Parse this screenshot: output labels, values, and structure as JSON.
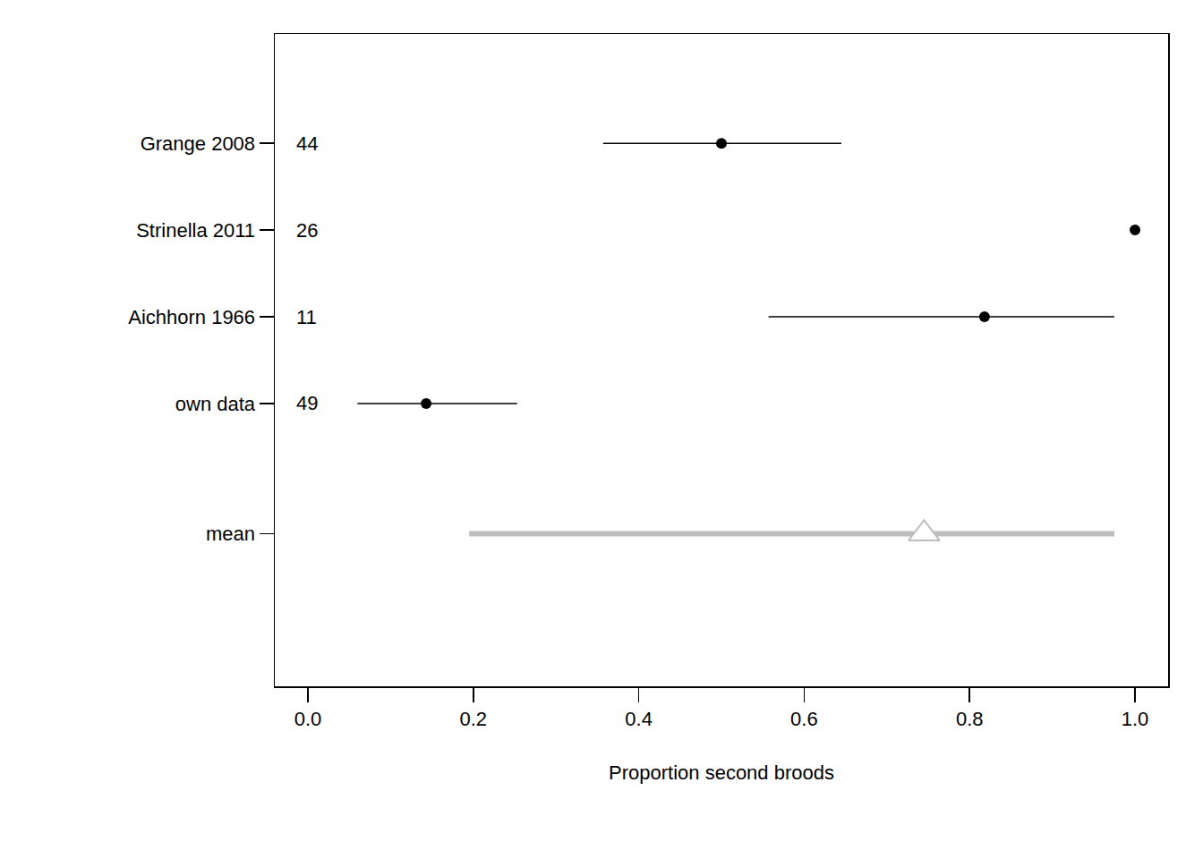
{
  "chart_data": {
    "type": "forest",
    "xlabel": "Proportion second broods",
    "categories": [
      "Grange 2008",
      "Strinella 2011",
      "Aichhorn 1966",
      "own data",
      "mean"
    ],
    "values": [
      0.5,
      1.0,
      0.818,
      0.143,
      0.745
    ],
    "lower": [
      0.357,
      null,
      0.557,
      0.06,
      0.195
    ],
    "upper": [
      0.645,
      null,
      0.975,
      0.253,
      0.975
    ],
    "n": [
      44,
      26,
      11,
      49,
      null
    ],
    "colors": [
      "#000000",
      "#000000",
      "#000000",
      "#000000",
      "#bebebe"
    ],
    "xlim": [
      -0.04,
      1.04
    ],
    "xticks": [
      {
        "value": 0,
        "label": "0.0"
      },
      0.2,
      0.4,
      0.6,
      0.8,
      {
        "value": 1,
        "label": "1.0"
      }
    ],
    "grid": false
  }
}
